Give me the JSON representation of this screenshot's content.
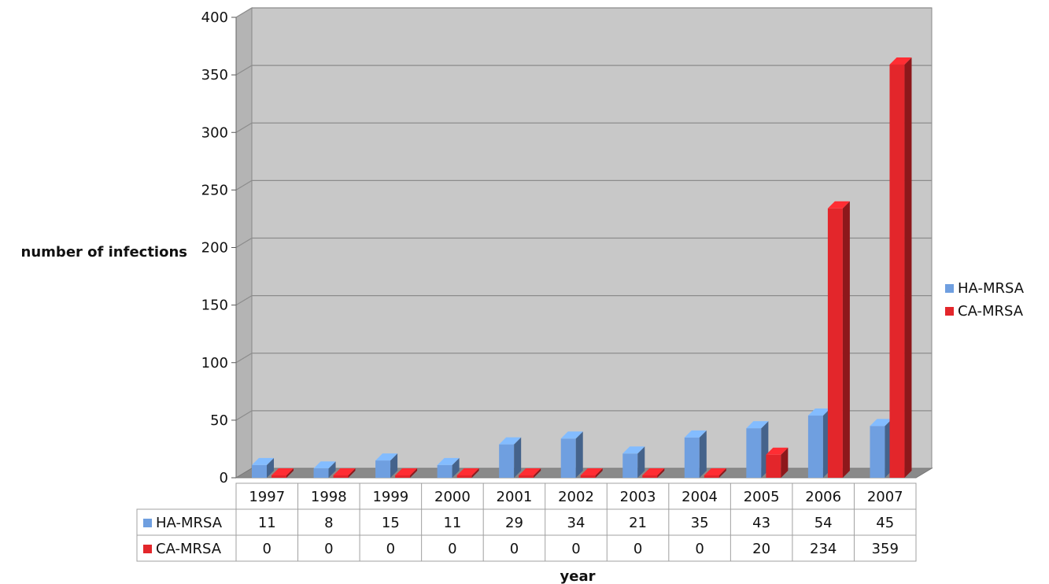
{
  "chart_data": {
    "type": "bar",
    "title": "",
    "xlabel": "year",
    "ylabel": "number of infections",
    "ylim": [
      0,
      400
    ],
    "yticks": [
      0,
      50,
      100,
      150,
      200,
      250,
      300,
      350,
      400
    ],
    "categories": [
      "1997",
      "1998",
      "1999",
      "2000",
      "2001",
      "2002",
      "2003",
      "2004",
      "2005",
      "2006",
      "2007"
    ],
    "series": [
      {
        "name": "HA-MRSA",
        "values": [
          11,
          8,
          15,
          11,
          29,
          34,
          21,
          35,
          43,
          54,
          45
        ],
        "color": "#6f9fe0"
      },
      {
        "name": "CA-MRSA",
        "values": [
          0,
          0,
          0,
          0,
          0,
          0,
          0,
          0,
          20,
          234,
          359
        ],
        "color": "#e3262b"
      }
    ],
    "grid": true,
    "legend": "right",
    "data_table": true
  },
  "colors": {
    "plot_background": "#c8c8c8",
    "wall_side": "#b4b4b4",
    "floor": "#8a8a8a",
    "gridline": "#8c8c8c",
    "table_border": "#a0a0a0"
  }
}
